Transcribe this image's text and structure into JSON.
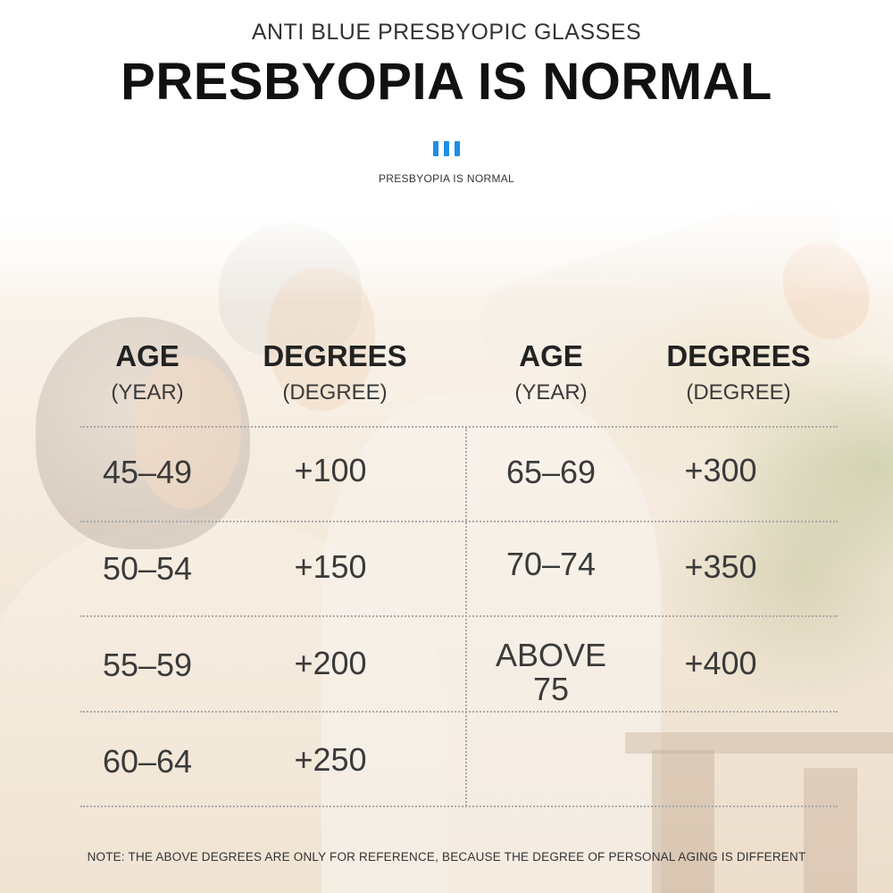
{
  "header": {
    "subtitle": "ANTI BLUE PRESBYOPIC GLASSES",
    "title": "PRESBYOPIA IS NORMAL",
    "caption": "PRESBYOPIA IS NORMAL",
    "accent_color": "#1f8ee6"
  },
  "table": {
    "columns": [
      {
        "label": "AGE",
        "unit": "(YEAR)"
      },
      {
        "label": "DEGREES",
        "unit": "(DEGREE)"
      },
      {
        "label": "AGE",
        "unit": "(YEAR)"
      },
      {
        "label": "DEGREES",
        "unit": "(DEGREE)"
      }
    ],
    "left_rows": [
      {
        "age": "45–49",
        "degree": "+100"
      },
      {
        "age": "50–54",
        "degree": "+150"
      },
      {
        "age": "55–59",
        "degree": "+200"
      },
      {
        "age": "60–64",
        "degree": "+250"
      }
    ],
    "right_rows": [
      {
        "age": "65–69",
        "degree": "+300"
      },
      {
        "age": "70–74",
        "degree": "+350"
      },
      {
        "age_line1": "ABOVE",
        "age_line2": "75",
        "degree": "+400"
      }
    ]
  },
  "note": "NOTE: THE ABOVE DEGREES ARE ONLY FOR REFERENCE, BECAUSE THE DEGREE OF PERSONAL AGING IS DIFFERENT"
}
